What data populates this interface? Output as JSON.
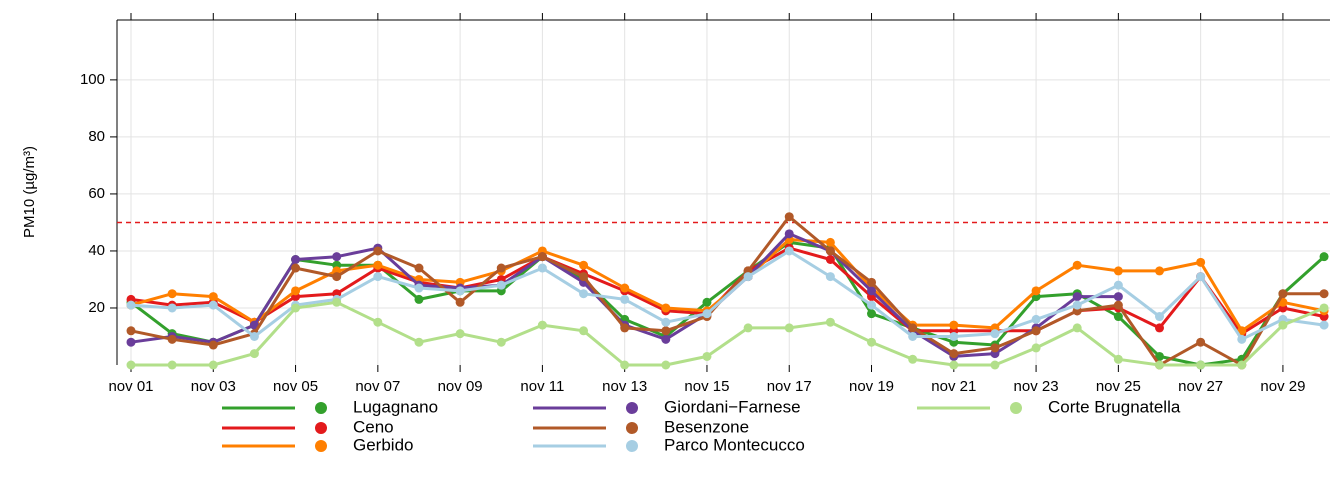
{
  "chart_data": {
    "type": "line",
    "y_label": "PM10 (µg/m³)",
    "categories": [
      "nov 01",
      null,
      "nov 03",
      null,
      "nov 05",
      null,
      "nov 07",
      null,
      "nov 09",
      null,
      "nov 11",
      null,
      "nov 13",
      null,
      "nov 15",
      null,
      "nov 17",
      null,
      "nov 19",
      null,
      "nov 21",
      null,
      "nov 23",
      null,
      "nov 25",
      null,
      "nov 27",
      null,
      "nov 29",
      null
    ],
    "ylim": [
      0,
      121
    ],
    "yticks": [
      20,
      40,
      60,
      80,
      100
    ],
    "grid": true,
    "threshold": 50,
    "threshold_color": "#e31a1c",
    "series": [
      {
        "name": "Lugagnano",
        "color": "#33a02c",
        "values": [
          22,
          11,
          8,
          14,
          37,
          35,
          35,
          23,
          26,
          26,
          38,
          30,
          16,
          10,
          22,
          33,
          43,
          41,
          18,
          13,
          8,
          7,
          24,
          25,
          17,
          3,
          0,
          2,
          25,
          38
        ]
      },
      {
        "name": "Ceno",
        "color": "#e31a1c",
        "values": [
          23,
          21,
          22,
          15,
          24,
          25,
          34,
          29,
          27,
          30,
          38,
          32,
          26,
          19,
          18,
          33,
          41,
          37,
          24,
          12,
          12,
          12,
          12,
          19,
          20,
          13,
          31,
          11,
          20,
          17
        ]
      },
      {
        "name": "Gerbido",
        "color": "#ff7f00",
        "values": [
          21,
          25,
          24,
          15,
          26,
          33,
          35,
          30,
          29,
          33,
          40,
          35,
          27,
          20,
          19,
          31,
          44,
          43,
          27,
          14,
          14,
          13,
          26,
          35,
          33,
          33,
          36,
          12,
          22,
          19
        ]
      },
      {
        "name": "Giordani−Farnese",
        "color": "#6a3d9a",
        "values": [
          8,
          10,
          8,
          14,
          37,
          38,
          41,
          28,
          27,
          28,
          38,
          29,
          14,
          9,
          18,
          31,
          46,
          40,
          26,
          12,
          3,
          4,
          13,
          24,
          24,
          null,
          null,
          null,
          null,
          null
        ]
      },
      {
        "name": "Besenzone",
        "color": "#b15928",
        "values": [
          12,
          9,
          7,
          11,
          34,
          31,
          40,
          34,
          22,
          34,
          38,
          31,
          13,
          12,
          17,
          33,
          52,
          40,
          29,
          13,
          4,
          6,
          12,
          19,
          21,
          0,
          8,
          0,
          25,
          25
        ]
      },
      {
        "name": "Parco Montecucco",
        "color": "#a6cee3",
        "values": [
          21,
          20,
          21,
          10,
          21,
          23,
          31,
          27,
          26,
          28,
          34,
          25,
          23,
          15,
          18,
          31,
          40,
          31,
          21,
          10,
          10,
          11,
          16,
          21,
          28,
          17,
          31,
          9,
          16,
          14
        ]
      },
      {
        "name": "Corte Brugnatella",
        "color": "#b2df8a",
        "values": [
          0,
          0,
          0,
          4,
          20,
          22,
          15,
          8,
          11,
          8,
          14,
          12,
          0,
          0,
          3,
          13,
          13,
          15,
          8,
          2,
          0,
          0,
          6,
          13,
          2,
          0,
          0,
          0,
          14,
          20
        ]
      }
    ]
  }
}
